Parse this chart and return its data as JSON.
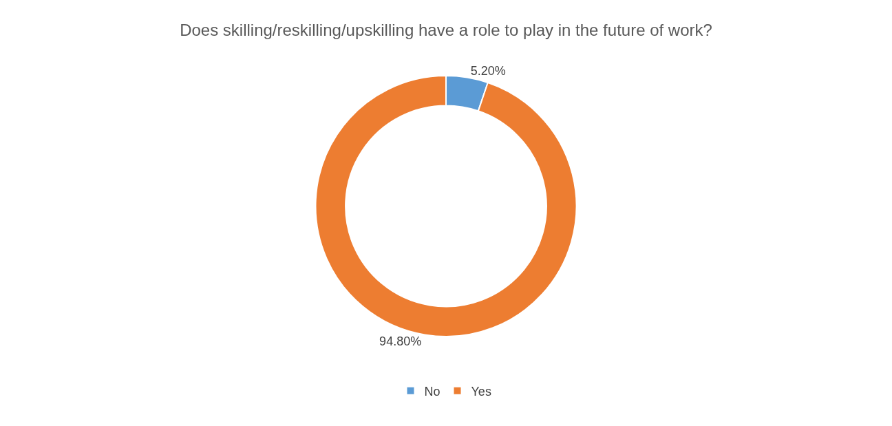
{
  "chart_data": {
    "type": "donut",
    "title": "Does skilling/reskilling/upskilling have a role to play in the future of work?",
    "categories": [
      "No",
      "Yes"
    ],
    "values": [
      5.2,
      94.8
    ],
    "value_labels": [
      "5.20%",
      "94.80%"
    ],
    "colors": [
      "#5b9bd5",
      "#ed7d31"
    ],
    "legend": "bottom"
  }
}
